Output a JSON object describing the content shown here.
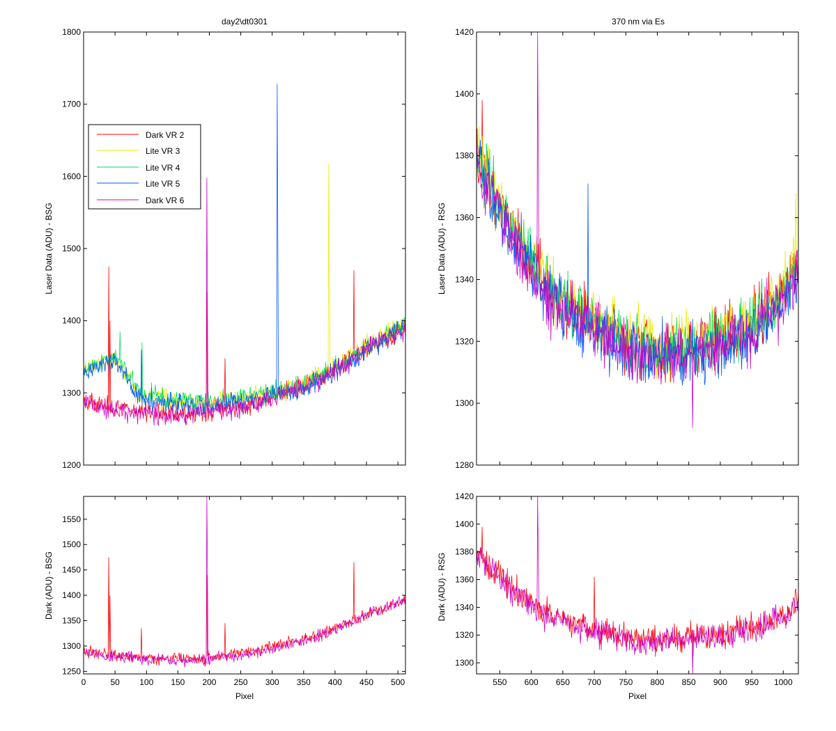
{
  "figure": {
    "title_left": "day2\\dt0301",
    "title_right": "370 nm via Es"
  },
  "chart_data": [
    {
      "id": "tl",
      "type": "line",
      "title": "day2\\dt0301",
      "xlabel": "",
      "ylabel": "Laser Data (ADU) - BSG",
      "xlim": [
        0,
        512
      ],
      "ylim": [
        1200,
        1800
      ],
      "yticks": [
        1200,
        1300,
        1400,
        1500,
        1600,
        1700,
        1800
      ],
      "xticks": [
        0,
        50,
        100,
        150,
        200,
        250,
        300,
        350,
        400,
        450,
        500
      ],
      "x_tick_labels_visible": false,
      "grid": false,
      "legend": "upper-left",
      "series": [
        {
          "name": "Dark VR 2",
          "color": "#ff0000",
          "baseline": [
            [
              0,
              1292
            ],
            [
              30,
              1282
            ],
            [
              60,
              1278
            ],
            [
              100,
              1275
            ],
            [
              150,
              1272
            ],
            [
              200,
              1275
            ],
            [
              250,
              1282
            ],
            [
              300,
              1295
            ],
            [
              350,
              1310
            ],
            [
              400,
              1332
            ],
            [
              450,
              1362
            ],
            [
              512,
              1392
            ]
          ],
          "spikes": [
            [
              40,
              1475
            ],
            [
              42,
              1400
            ],
            [
              196,
              1440
            ],
            [
              225,
              1348
            ],
            [
              430,
              1470
            ]
          ]
        },
        {
          "name": "Lite VR 3",
          "color": "#e8e800",
          "baseline": [
            [
              0,
              1330
            ],
            [
              30,
              1345
            ],
            [
              50,
              1345
            ],
            [
              60,
              1335
            ],
            [
              90,
              1295
            ],
            [
              150,
              1290
            ],
            [
              200,
              1283
            ],
            [
              250,
              1292
            ],
            [
              300,
              1298
            ],
            [
              350,
              1312
            ],
            [
              400,
              1335
            ],
            [
              450,
              1365
            ],
            [
              512,
              1396
            ]
          ],
          "spikes": [
            [
              390,
              1618
            ],
            [
              391,
              1480
            ]
          ]
        },
        {
          "name": "Lite VR 4",
          "color": "#00dd55",
          "baseline": [
            [
              0,
              1330
            ],
            [
              30,
              1345
            ],
            [
              50,
              1350
            ],
            [
              60,
              1340
            ],
            [
              90,
              1300
            ],
            [
              150,
              1292
            ],
            [
              200,
              1285
            ],
            [
              250,
              1292
            ],
            [
              300,
              1298
            ],
            [
              350,
              1310
            ],
            [
              400,
              1332
            ],
            [
              450,
              1362
            ],
            [
              512,
              1394
            ]
          ],
          "spikes": [
            [
              58,
              1385
            ],
            [
              93,
              1370
            ]
          ]
        },
        {
          "name": "Lite VR 5",
          "color": "#0055ff",
          "baseline": [
            [
              0,
              1325
            ],
            [
              30,
              1340
            ],
            [
              50,
              1345
            ],
            [
              60,
              1335
            ],
            [
              90,
              1292
            ],
            [
              150,
              1285
            ],
            [
              200,
              1280
            ],
            [
              250,
              1288
            ],
            [
              300,
              1295
            ],
            [
              350,
              1308
            ],
            [
              400,
              1330
            ],
            [
              450,
              1360
            ],
            [
              512,
              1392
            ]
          ],
          "spikes": [
            [
              308,
              1728
            ],
            [
              309,
              1515
            ],
            [
              92,
              1360
            ]
          ]
        },
        {
          "name": "Dark VR 6",
          "color": "#cc00cc",
          "baseline": [
            [
              0,
              1286
            ],
            [
              30,
              1278
            ],
            [
              60,
              1275
            ],
            [
              100,
              1272
            ],
            [
              150,
              1268
            ],
            [
              200,
              1272
            ],
            [
              250,
              1280
            ],
            [
              300,
              1292
            ],
            [
              350,
              1308
            ],
            [
              400,
              1330
            ],
            [
              450,
              1360
            ],
            [
              512,
              1390
            ]
          ],
          "spikes": [
            [
              196,
              1598
            ],
            [
              197,
              1400
            ]
          ]
        }
      ],
      "noise": 10,
      "seed": 11
    },
    {
      "id": "tr",
      "type": "line",
      "title": "370 nm via Es",
      "xlabel": "",
      "ylabel": "Laser Data (ADU) - RSG",
      "xlim": [
        513,
        1024
      ],
      "ylim": [
        1280,
        1420
      ],
      "yticks": [
        1280,
        1300,
        1320,
        1340,
        1360,
        1380,
        1400,
        1420
      ],
      "xticks": [
        550,
        600,
        650,
        700,
        750,
        800,
        850,
        900,
        950,
        1000
      ],
      "x_tick_labels_visible": false,
      "grid": false,
      "series": [
        {
          "name": "Dark VR 2",
          "color": "#ff0000",
          "baseline": [
            [
              513,
              1380
            ],
            [
              540,
              1368
            ],
            [
              580,
              1352
            ],
            [
              620,
              1338
            ],
            [
              680,
              1328
            ],
            [
              750,
              1320
            ],
            [
              800,
              1317
            ],
            [
              850,
              1318
            ],
            [
              900,
              1320
            ],
            [
              950,
              1325
            ],
            [
              1000,
              1335
            ],
            [
              1024,
              1345
            ]
          ],
          "spikes": [
            [
              522,
              1398
            ]
          ]
        },
        {
          "name": "Lite VR 3",
          "color": "#e8e800",
          "baseline": [
            [
              513,
              1382
            ],
            [
              540,
              1370
            ],
            [
              580,
              1354
            ],
            [
              620,
              1340
            ],
            [
              680,
              1330
            ],
            [
              750,
              1322
            ],
            [
              800,
              1318
            ],
            [
              850,
              1320
            ],
            [
              900,
              1322
            ],
            [
              950,
              1327
            ],
            [
              1000,
              1337
            ],
            [
              1024,
              1348
            ]
          ],
          "spikes": [
            [
              1020,
              1368
            ]
          ]
        },
        {
          "name": "Lite VR 4",
          "color": "#00dd55",
          "baseline": [
            [
              513,
              1380
            ],
            [
              540,
              1368
            ],
            [
              580,
              1352
            ],
            [
              620,
              1338
            ],
            [
              680,
              1328
            ],
            [
              750,
              1320
            ],
            [
              800,
              1316
            ],
            [
              850,
              1318
            ],
            [
              900,
              1320
            ],
            [
              950,
              1325
            ],
            [
              1000,
              1335
            ],
            [
              1024,
              1345
            ]
          ],
          "spikes": []
        },
        {
          "name": "Lite VR 5",
          "color": "#0055ff",
          "baseline": [
            [
              513,
              1378
            ],
            [
              540,
              1366
            ],
            [
              580,
              1350
            ],
            [
              620,
              1336
            ],
            [
              680,
              1326
            ],
            [
              750,
              1318
            ],
            [
              800,
              1315
            ],
            [
              850,
              1316
            ],
            [
              900,
              1318
            ],
            [
              950,
              1323
            ],
            [
              1000,
              1333
            ],
            [
              1024,
              1342
            ]
          ],
          "spikes": [
            [
              690,
              1371
            ]
          ]
        },
        {
          "name": "Dark VR 6",
          "color": "#cc00cc",
          "baseline": [
            [
              513,
              1378
            ],
            [
              540,
              1366
            ],
            [
              580,
              1350
            ],
            [
              620,
              1336
            ],
            [
              680,
              1326
            ],
            [
              750,
              1318
            ],
            [
              800,
              1315
            ],
            [
              850,
              1316
            ],
            [
              900,
              1318
            ],
            [
              950,
              1323
            ],
            [
              1000,
              1333
            ],
            [
              1024,
              1342
            ]
          ],
          "spikes": [
            [
              610,
              1420
            ],
            [
              611,
              1380
            ],
            [
              856,
              1292
            ]
          ]
        }
      ],
      "noise": 7,
      "seed": 23
    },
    {
      "id": "bl",
      "type": "line",
      "title": "",
      "xlabel": "Pixel",
      "ylabel": "Dark (ADU) - BSG",
      "xlim": [
        0,
        512
      ],
      "ylim": [
        1245,
        1595
      ],
      "yticks": [
        1250,
        1300,
        1350,
        1400,
        1450,
        1500,
        1550
      ],
      "xticks": [
        0,
        50,
        100,
        150,
        200,
        250,
        300,
        350,
        400,
        450,
        500
      ],
      "x_tick_labels_visible": true,
      "grid": false,
      "series": [
        {
          "name": "Dark VR 2",
          "color": "#ff0000",
          "baseline": [
            [
              0,
              1290
            ],
            [
              30,
              1284
            ],
            [
              60,
              1280
            ],
            [
              100,
              1277
            ],
            [
              150,
              1275
            ],
            [
              200,
              1277
            ],
            [
              250,
              1285
            ],
            [
              300,
              1298
            ],
            [
              350,
              1312
            ],
            [
              400,
              1334
            ],
            [
              450,
              1362
            ],
            [
              512,
              1392
            ]
          ],
          "spikes": [
            [
              40,
              1475
            ],
            [
              42,
              1400
            ],
            [
              92,
              1335
            ],
            [
              196,
              1440
            ],
            [
              225,
              1345
            ],
            [
              430,
              1465
            ]
          ]
        },
        {
          "name": "Dark VR 6",
          "color": "#cc00cc",
          "baseline": [
            [
              0,
              1288
            ],
            [
              30,
              1280
            ],
            [
              60,
              1278
            ],
            [
              100,
              1274
            ],
            [
              150,
              1270
            ],
            [
              200,
              1274
            ],
            [
              250,
              1282
            ],
            [
              300,
              1295
            ],
            [
              350,
              1310
            ],
            [
              400,
              1332
            ],
            [
              450,
              1360
            ],
            [
              512,
              1390
            ]
          ],
          "spikes": [
            [
              196,
              1595
            ],
            [
              197,
              1450
            ]
          ]
        }
      ],
      "noise": 8,
      "seed": 37
    },
    {
      "id": "br",
      "type": "line",
      "title": "",
      "xlabel": "Pixel",
      "ylabel": "Dark (ADU) - RSG",
      "xlim": [
        513,
        1024
      ],
      "ylim": [
        1292,
        1420
      ],
      "yticks": [
        1300,
        1320,
        1340,
        1360,
        1380,
        1400,
        1420
      ],
      "xticks": [
        550,
        600,
        650,
        700,
        750,
        800,
        850,
        900,
        950,
        1000
      ],
      "x_tick_labels_visible": true,
      "grid": false,
      "series": [
        {
          "name": "Dark VR 2",
          "color": "#ff0000",
          "baseline": [
            [
              513,
              1380
            ],
            [
              540,
              1367
            ],
            [
              580,
              1350
            ],
            [
              620,
              1337
            ],
            [
              680,
              1327
            ],
            [
              750,
              1319
            ],
            [
              800,
              1316
            ],
            [
              850,
              1318
            ],
            [
              900,
              1320
            ],
            [
              950,
              1325
            ],
            [
              1000,
              1334
            ],
            [
              1024,
              1344
            ]
          ],
          "spikes": [
            [
              522,
              1398
            ],
            [
              700,
              1362
            ]
          ]
        },
        {
          "name": "Dark VR 6",
          "color": "#cc00cc",
          "baseline": [
            [
              513,
              1378
            ],
            [
              540,
              1365
            ],
            [
              580,
              1349
            ],
            [
              620,
              1335
            ],
            [
              680,
              1325
            ],
            [
              750,
              1317
            ],
            [
              800,
              1314
            ],
            [
              850,
              1316
            ],
            [
              900,
              1318
            ],
            [
              950,
              1323
            ],
            [
              1000,
              1332
            ],
            [
              1024,
              1342
            ]
          ],
          "spikes": [
            [
              610,
              1420
            ],
            [
              611,
              1380
            ],
            [
              856,
              1292
            ]
          ]
        }
      ],
      "noise": 7,
      "seed": 53
    }
  ]
}
